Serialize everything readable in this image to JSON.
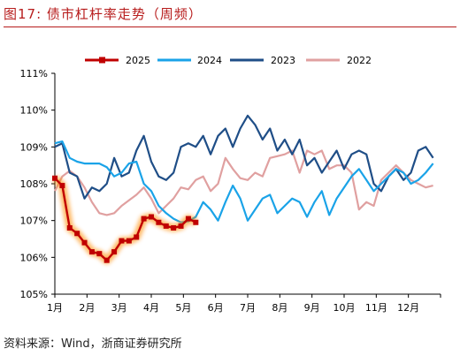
{
  "header": {
    "title": "图17:  债市杠杆率走势（周频）"
  },
  "footer": {
    "source": "资料来源：Wind，浙商证券研究所"
  },
  "colors": {
    "title": "#b71c1c",
    "s2025": "#c00000",
    "s2025_glow": "#ff8a00",
    "s2024": "#1aa3e8",
    "s2023": "#1f4e87",
    "s2022": "#e0a0a0"
  },
  "chart_data": {
    "type": "line",
    "x_ticks": [
      "1月",
      "2月",
      "3月",
      "4月",
      "5月",
      "6月",
      "7月",
      "8月",
      "9月",
      "10月",
      "11月",
      "12月"
    ],
    "y_ticks": [
      "105%",
      "106%",
      "107%",
      "108%",
      "109%",
      "110%",
      "111%"
    ],
    "ylim": [
      105,
      111
    ],
    "x_unit": "week of year",
    "xlim": [
      1,
      53
    ],
    "legend_position": "top",
    "grid": false,
    "series": [
      {
        "name": "2025",
        "color": "#c00000",
        "marker": "square",
        "x": [
          1,
          2,
          3,
          4,
          5,
          6,
          7,
          8,
          9,
          10,
          11,
          12,
          13,
          14,
          15,
          16,
          17,
          18,
          19,
          20
        ],
        "values": [
          108.15,
          107.95,
          106.8,
          106.65,
          106.4,
          106.15,
          106.1,
          105.92,
          106.15,
          106.45,
          106.45,
          106.55,
          107.05,
          107.1,
          106.95,
          106.85,
          106.8,
          106.85,
          107.05,
          106.95
        ]
      },
      {
        "name": "2024",
        "color": "#1aa3e8",
        "x": [
          1,
          2,
          3,
          4,
          5,
          6,
          7,
          8,
          9,
          10,
          11,
          12,
          13,
          14,
          15,
          16,
          17,
          18,
          19,
          20,
          21,
          22,
          23,
          24,
          25,
          26,
          27,
          28,
          29,
          30,
          31,
          32,
          33,
          34,
          35,
          36,
          37,
          38,
          39,
          40,
          41,
          42,
          43,
          44,
          45,
          46,
          47,
          48,
          49,
          50,
          51,
          52
        ],
        "values": [
          109.1,
          109.15,
          108.7,
          108.6,
          108.55,
          108.55,
          108.55,
          108.45,
          108.2,
          108.3,
          108.55,
          108.6,
          108.0,
          107.8,
          107.4,
          107.2,
          107.05,
          106.95,
          106.98,
          107.1,
          107.5,
          107.3,
          107.0,
          107.5,
          107.95,
          107.6,
          107.0,
          107.3,
          107.6,
          107.7,
          107.2,
          107.4,
          107.6,
          107.5,
          107.1,
          107.5,
          107.8,
          107.15,
          107.6,
          107.9,
          108.2,
          108.4,
          108.1,
          107.8,
          108.0,
          108.2,
          108.4,
          108.3,
          108.0,
          108.1,
          108.3,
          108.55
        ]
      },
      {
        "name": "2023",
        "color": "#1f4e87",
        "x": [
          1,
          2,
          3,
          4,
          5,
          6,
          7,
          8,
          9,
          10,
          11,
          12,
          13,
          14,
          15,
          16,
          17,
          18,
          19,
          20,
          21,
          22,
          23,
          24,
          25,
          26,
          27,
          28,
          29,
          30,
          31,
          32,
          33,
          34,
          35,
          36,
          37,
          38,
          39,
          40,
          41,
          42,
          43,
          44,
          45,
          46,
          47,
          48,
          49,
          50,
          51,
          52
        ],
        "values": [
          109.0,
          109.1,
          108.3,
          108.2,
          107.6,
          107.9,
          107.8,
          108.0,
          108.7,
          108.2,
          108.3,
          108.9,
          109.3,
          108.6,
          108.2,
          108.1,
          108.3,
          109.0,
          109.1,
          109.0,
          109.3,
          108.8,
          109.3,
          109.5,
          109.0,
          109.5,
          109.85,
          109.6,
          109.2,
          109.5,
          108.9,
          109.2,
          108.8,
          109.2,
          108.5,
          108.7,
          108.3,
          108.6,
          108.9,
          108.4,
          108.8,
          108.9,
          108.8,
          108.0,
          107.8,
          108.2,
          108.4,
          108.1,
          108.3,
          108.9,
          109.0,
          108.7
        ]
      },
      {
        "name": "2022",
        "color": "#e0a0a0",
        "x": [
          1,
          2,
          3,
          4,
          5,
          6,
          7,
          8,
          9,
          10,
          11,
          12,
          13,
          14,
          15,
          16,
          17,
          18,
          19,
          20,
          21,
          22,
          23,
          24,
          25,
          26,
          27,
          28,
          29,
          30,
          31,
          32,
          33,
          34,
          35,
          36,
          37,
          38,
          39,
          40,
          41,
          42,
          43,
          44,
          45,
          46,
          47,
          48,
          49,
          50,
          51,
          52
        ],
        "values": [
          107.8,
          108.2,
          108.35,
          108.2,
          107.9,
          107.5,
          107.2,
          107.15,
          107.2,
          107.4,
          107.55,
          107.7,
          107.9,
          107.6,
          107.2,
          107.4,
          107.6,
          107.9,
          107.85,
          108.1,
          108.2,
          107.8,
          108.0,
          108.7,
          108.4,
          108.15,
          108.1,
          108.3,
          108.2,
          108.7,
          108.75,
          108.8,
          108.9,
          108.3,
          108.9,
          108.8,
          108.9,
          108.4,
          108.5,
          108.5,
          108.3,
          107.3,
          107.5,
          107.4,
          108.1,
          108.3,
          108.5,
          108.3,
          108.1,
          108.0,
          107.9,
          107.95
        ]
      }
    ]
  }
}
